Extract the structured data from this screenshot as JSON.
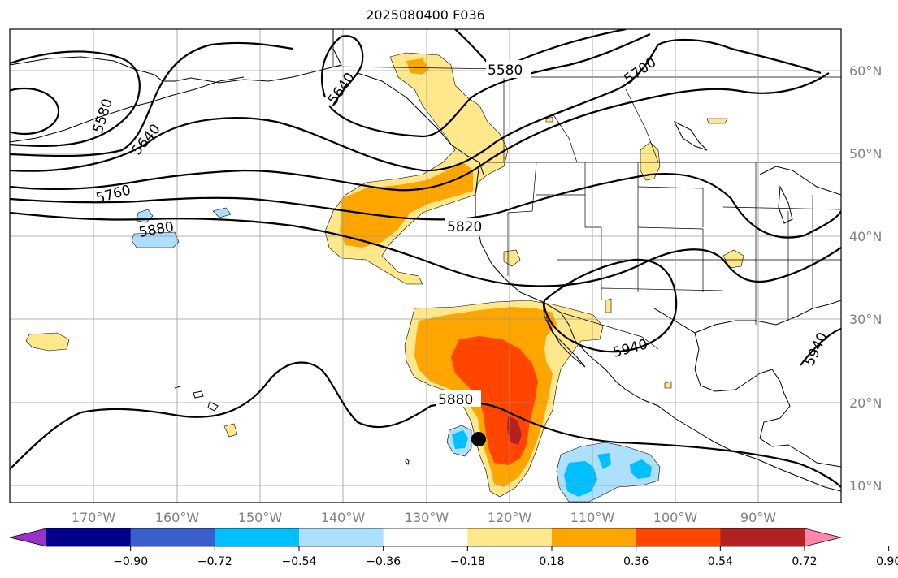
{
  "title": "2025080400 F036",
  "longitude_labels": [
    "170°W",
    "160°W",
    "150°W",
    "140°W",
    "130°W",
    "120°W",
    "110°W",
    "100°W",
    "90°W"
  ],
  "latitude_labels": [
    "60°N",
    "50°N",
    "40°N",
    "30°N",
    "20°N",
    "10°N"
  ],
  "contour_labels": [
    "5580",
    "5640",
    "5700",
    "5760",
    "5820",
    "5880",
    "5940",
    "5580",
    "5640",
    "5880",
    "5940"
  ],
  "colorbar": {
    "tick_labels": [
      "−0.90",
      "−0.72",
      "−0.54",
      "−0.36",
      "−0.18",
      "0.18",
      "0.36",
      "0.54",
      "0.72",
      "0.90"
    ],
    "colors": [
      "#9932CC",
      "#00008B",
      "#3A5FCD",
      "#00BFFF",
      "#ADDFFF",
      "#FFFFFF",
      "#FFE88C",
      "#FFA500",
      "#FF4500",
      "#B22222",
      "#FF88AA"
    ]
  },
  "palette": {
    "yellow": "#FFE88C",
    "orange": "#FFA500",
    "red_orange": "#FF4500",
    "dark_red": "#B22222",
    "light_blue": "#ADDFFF",
    "blue": "#00BFFF"
  }
}
